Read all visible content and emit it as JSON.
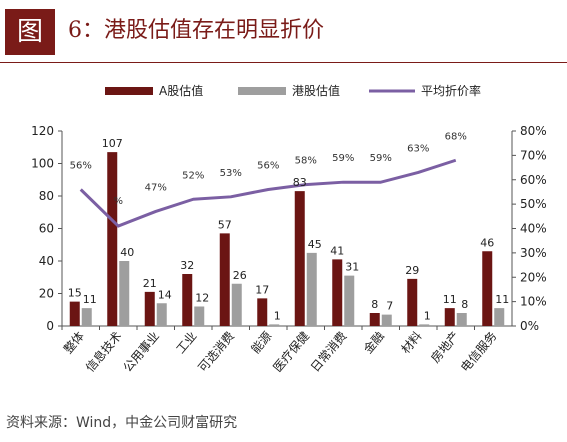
{
  "header": {
    "figure_label": "图",
    "title": "6：港股估值存在明显折价"
  },
  "footer": {
    "source": "资料来源：Wind，中金公司财富研究"
  },
  "colors": {
    "a_share": "#6b1513",
    "hk": "#9e9e9e",
    "discount": "#7b5fa3",
    "accent": "#7a1b18"
  },
  "chart_data": {
    "type": "bar",
    "categories": [
      "整体",
      "信息技术",
      "公用事业",
      "工业",
      "可选消费",
      "能源",
      "医疗保健",
      "日常消费",
      "金融",
      "材料",
      "房地产",
      "电信服务"
    ],
    "series": [
      {
        "name": "A股估值",
        "type": "bar",
        "axis": "left",
        "values": [
          15,
          107,
          21,
          32,
          57,
          17,
          83,
          41,
          8,
          29,
          11,
          46
        ]
      },
      {
        "name": "港股估值",
        "type": "bar",
        "axis": "left",
        "values": [
          11,
          40,
          14,
          12,
          26,
          1,
          45,
          31,
          7,
          1,
          8,
          11
        ]
      },
      {
        "name": "平均折价率",
        "type": "line",
        "axis": "right",
        "values": [
          56,
          null,
          47,
          52,
          53,
          56,
          58,
          59,
          59,
          63,
          68,
          null
        ],
        "display": [
          "56%",
          "%",
          "47%",
          "52%",
          "53%",
          "56%",
          "58%",
          "59%",
          "59%",
          "63%",
          "68%",
          ""
        ],
        "line_values": [
          56,
          41,
          47,
          52,
          53,
          56,
          58,
          59,
          59,
          63,
          68
        ]
      }
    ],
    "y_left": {
      "min": 0,
      "max": 120,
      "ticks": [
        0,
        20,
        40,
        60,
        80,
        100,
        120
      ]
    },
    "y_right": {
      "min": 0,
      "max": 80,
      "ticks": [
        "0%",
        "10%",
        "20%",
        "30%",
        "40%",
        "50%",
        "60%",
        "70%",
        "80%"
      ]
    },
    "legend_position": "top",
    "grid": false
  }
}
